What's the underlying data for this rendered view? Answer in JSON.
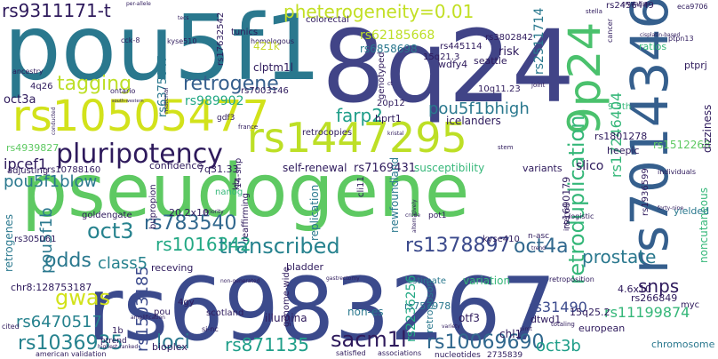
{
  "palette": {
    "navy": "#3b4a8c",
    "blue": "#31688e",
    "teal": "#23898e",
    "green": "#35b779",
    "lime": "#7ad151",
    "yellow": "#c8dc2a",
    "purple": "#482878",
    "dark": "#440154",
    "light_blue": "#90c2d6",
    "light_green": "#a8d8a8"
  },
  "words": [
    "pseudogene",
    "rs6983267",
    "8q24",
    "pou5f1",
    "rs1447295",
    "rs10505477",
    "rs7014346",
    "9p24",
    "pluripotency",
    "retroduplication",
    "transcribed",
    "rs1378897",
    "oct4a",
    "rs783540",
    "oct3",
    "pou5f1b",
    "gwas",
    "retrogene",
    "tagging",
    "pheterogeneity=0.01",
    "prostate",
    "rs1036935",
    "rs6470517",
    "loci",
    "rs871135",
    "sacm1l",
    "rs10069690",
    "rs1016342",
    "snps",
    "pou5f1blow",
    "farp2",
    "pou5f1bhigh",
    "rs9311171-t",
    "rs1503185",
    "oct3b",
    "odds",
    "class5",
    "rs11199874",
    "rs2236256",
    "rs31490",
    "rs17246404",
    "rs1801278",
    "rs1512268",
    "rs4939827",
    "ipcef1",
    "rs2511714",
    "rs62185668",
    "rs6858698",
    "rs3802842",
    "rs2456449",
    "rs1690179",
    "rs7003146",
    "rs989902",
    "rs7169431",
    "rs10788160",
    "rs305061",
    "rs757978",
    "rs266849",
    "rs6375047",
    "rs17632542",
    "rs1936599",
    "rs445114",
    "self-renewal",
    "susceptibility",
    "confidence",
    "7q31.33",
    "retrocopies",
    "icelanders",
    "newfoundland",
    "illumina",
    "scotland",
    "non-es",
    "bioplex",
    "variation",
    "estimate",
    "retroposon",
    "nucleotides",
    "2735839",
    "chromosome",
    "noncutaneous",
    "dizziness",
    "yielded",
    "variants",
    "slico",
    "heepic",
    "ptprj",
    "4.6x10",
    "myc",
    "15q25.2",
    "dtwd1",
    "otf3",
    "chl1",
    "european",
    "kyse410",
    "n-asc",
    "gdf3",
    "adjusting",
    "nanog",
    "replication",
    "reaffirming",
    "genome-wide",
    "bladder",
    "receving",
    "20.2x10",
    "bupropion",
    "goldengate",
    "chr8:128753187",
    "4gy",
    "pou",
    "1b",
    "ptrend",
    "pot1",
    "cited",
    "american",
    "validation",
    "satisfied",
    "associations",
    "si-nc",
    "colorectal",
    "tunics",
    "homologous",
    "clptm1l",
    "421k",
    "risk",
    "seattle",
    "15q21.3",
    "10q11.23",
    "genotyped",
    "wdfy4",
    "hprt1",
    "20p12",
    "14-snp",
    "cli11",
    "9.5th",
    "oct3a",
    "4q26",
    "ratios",
    "cancer",
    "kb",
    "retrogenes",
    "stella",
    "eca9706",
    "ptpn13",
    "cck-8",
    "kyse510",
    "crystalline",
    "cisplatin-based",
    "per-allele",
    "ontario",
    "ancestry",
    "material",
    "france",
    "stem",
    "totaling",
    "variety",
    "forty-nine",
    "individuals",
    "logistic",
    "interval",
    "joint",
    "retroposition",
    "amplification",
    "priority",
    "trend",
    "highest-ranked",
    "gastrectomy",
    "non-generated",
    "alternatively",
    "conducted",
    "south-western",
    "pimt",
    "ct",
    "kristal",
    "tecs",
    "crude"
  ]
}
